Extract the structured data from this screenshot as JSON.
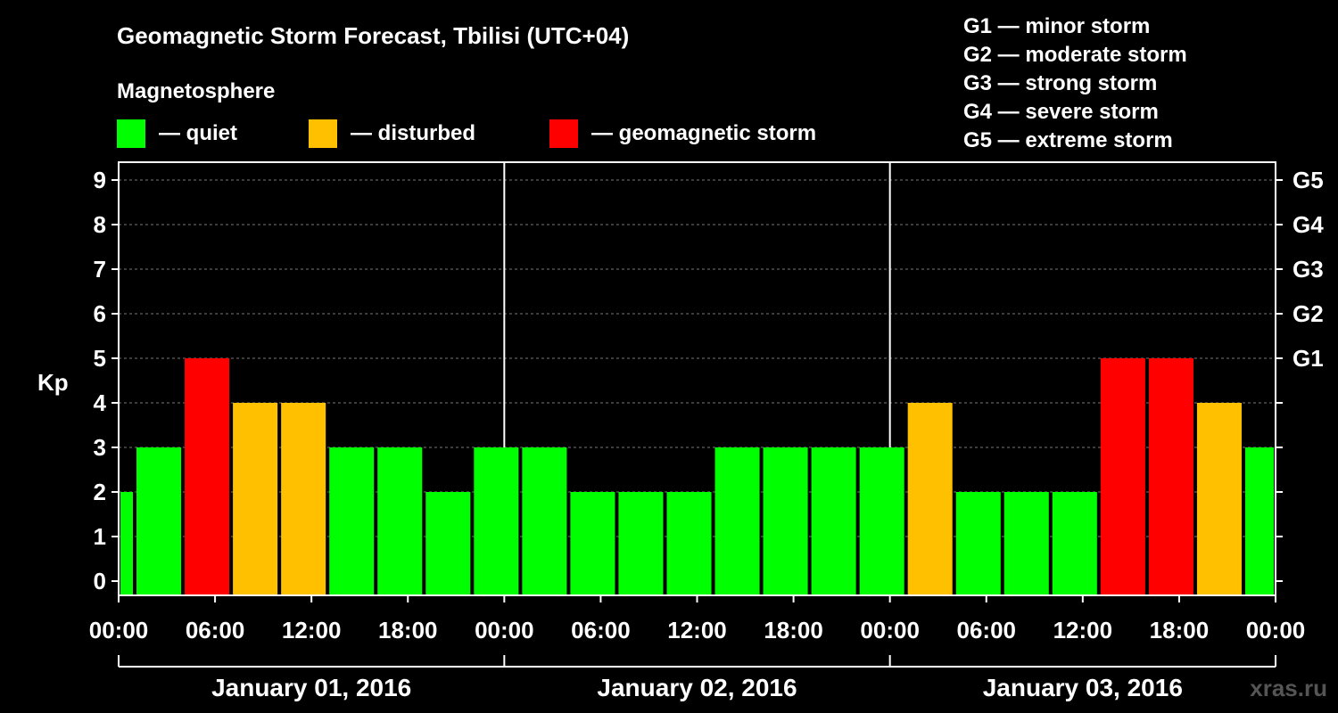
{
  "title": "Geomagnetic Storm Forecast, Tbilisi (UTC+04)",
  "legend": {
    "heading": "Magnetosphere",
    "items": [
      {
        "label": "— quiet",
        "color": "#00ff00"
      },
      {
        "label": "— disturbed",
        "color": "#ffc000"
      },
      {
        "label": "— geomagnetic storm",
        "color": "#ff0000"
      }
    ]
  },
  "storm_scale": [
    "G1 — minor storm",
    "G2 — moderate storm",
    "G3 — strong storm",
    "G4 — severe storm",
    "G5 — extreme storm"
  ],
  "watermark": "xras.ru",
  "chart_data": {
    "type": "bar",
    "ylabel": "Kp",
    "ylim": [
      0,
      9
    ],
    "y_ticks": [
      "0",
      "1",
      "2",
      "3",
      "4",
      "5",
      "6",
      "7",
      "8",
      "9"
    ],
    "right_axis_labels": [
      {
        "kp": 5,
        "label": "G1"
      },
      {
        "kp": 6,
        "label": "G2"
      },
      {
        "kp": 7,
        "label": "G3"
      },
      {
        "kp": 8,
        "label": "G4"
      },
      {
        "kp": 9,
        "label": "G5"
      }
    ],
    "grid": "horizontal dashed",
    "x_tick_labels": [
      "00:00",
      "06:00",
      "12:00",
      "18:00",
      "00:00",
      "06:00",
      "12:00",
      "18:00",
      "00:00",
      "06:00",
      "12:00",
      "18:00",
      "00:00"
    ],
    "days": [
      "January 01, 2016",
      "January 02, 2016",
      "January 03, 2016"
    ],
    "bars": [
      {
        "start": "2016-01-01 00:00",
        "end": "2016-01-01 01:00",
        "kp": 2,
        "level": "quiet"
      },
      {
        "start": "2016-01-01 01:00",
        "end": "2016-01-01 04:00",
        "kp": 3,
        "level": "quiet"
      },
      {
        "start": "2016-01-01 04:00",
        "end": "2016-01-01 07:00",
        "kp": 5,
        "level": "geomagnetic storm"
      },
      {
        "start": "2016-01-01 07:00",
        "end": "2016-01-01 10:00",
        "kp": 4,
        "level": "disturbed"
      },
      {
        "start": "2016-01-01 10:00",
        "end": "2016-01-01 13:00",
        "kp": 4,
        "level": "disturbed"
      },
      {
        "start": "2016-01-01 13:00",
        "end": "2016-01-01 16:00",
        "kp": 3,
        "level": "quiet"
      },
      {
        "start": "2016-01-01 16:00",
        "end": "2016-01-01 19:00",
        "kp": 3,
        "level": "quiet"
      },
      {
        "start": "2016-01-01 19:00",
        "end": "2016-01-01 22:00",
        "kp": 2,
        "level": "quiet"
      },
      {
        "start": "2016-01-01 22:00",
        "end": "2016-01-02 01:00",
        "kp": 3,
        "level": "quiet"
      },
      {
        "start": "2016-01-02 01:00",
        "end": "2016-01-02 04:00",
        "kp": 3,
        "level": "quiet"
      },
      {
        "start": "2016-01-02 04:00",
        "end": "2016-01-02 07:00",
        "kp": 2,
        "level": "quiet"
      },
      {
        "start": "2016-01-02 07:00",
        "end": "2016-01-02 10:00",
        "kp": 2,
        "level": "quiet"
      },
      {
        "start": "2016-01-02 10:00",
        "end": "2016-01-02 13:00",
        "kp": 2,
        "level": "quiet"
      },
      {
        "start": "2016-01-02 13:00",
        "end": "2016-01-02 16:00",
        "kp": 3,
        "level": "quiet"
      },
      {
        "start": "2016-01-02 16:00",
        "end": "2016-01-02 19:00",
        "kp": 3,
        "level": "quiet"
      },
      {
        "start": "2016-01-02 19:00",
        "end": "2016-01-02 22:00",
        "kp": 3,
        "level": "quiet"
      },
      {
        "start": "2016-01-02 22:00",
        "end": "2016-01-03 01:00",
        "kp": 3,
        "level": "quiet"
      },
      {
        "start": "2016-01-03 01:00",
        "end": "2016-01-03 04:00",
        "kp": 4,
        "level": "disturbed"
      },
      {
        "start": "2016-01-03 04:00",
        "end": "2016-01-03 07:00",
        "kp": 2,
        "level": "quiet"
      },
      {
        "start": "2016-01-03 07:00",
        "end": "2016-01-03 10:00",
        "kp": 2,
        "level": "quiet"
      },
      {
        "start": "2016-01-03 10:00",
        "end": "2016-01-03 13:00",
        "kp": 2,
        "level": "quiet"
      },
      {
        "start": "2016-01-03 13:00",
        "end": "2016-01-03 16:00",
        "kp": 5,
        "level": "geomagnetic storm"
      },
      {
        "start": "2016-01-03 16:00",
        "end": "2016-01-03 19:00",
        "kp": 5,
        "level": "geomagnetic storm"
      },
      {
        "start": "2016-01-03 19:00",
        "end": "2016-01-03 22:00",
        "kp": 4,
        "level": "disturbed"
      },
      {
        "start": "2016-01-03 22:00",
        "end": "2016-01-04 00:00",
        "kp": 3,
        "level": "quiet"
      }
    ]
  }
}
